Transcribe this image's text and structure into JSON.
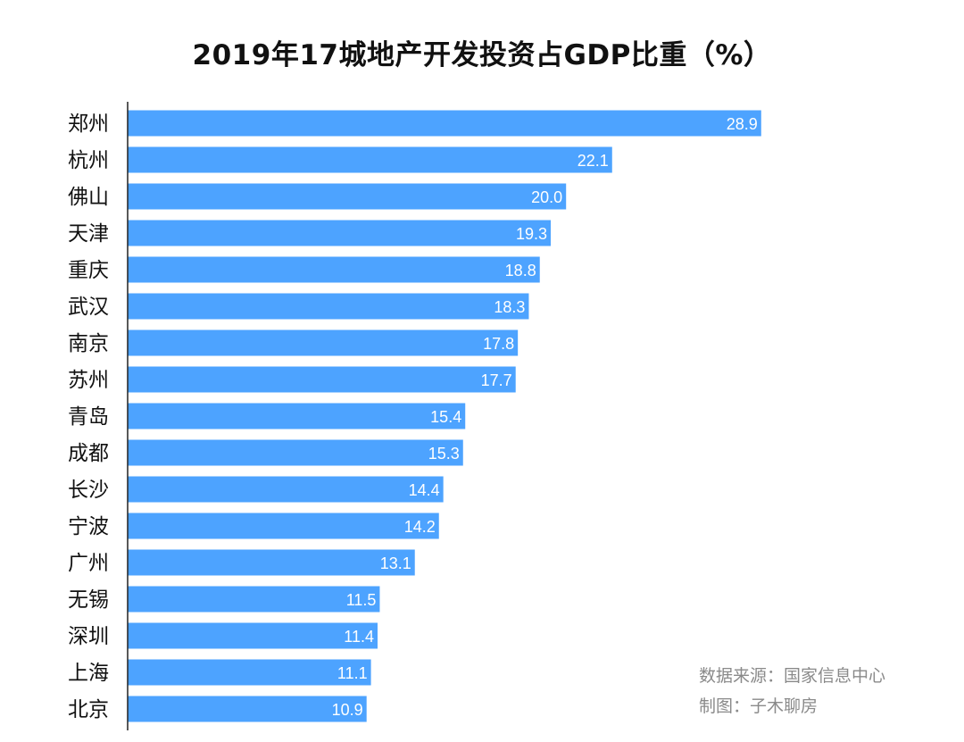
{
  "colors": {
    "bar": "#4da3ff",
    "axis": "#222222",
    "value_text": "#ffffff",
    "note_text": "#8a8a8a"
  },
  "chart_data": {
    "type": "bar",
    "orientation": "horizontal",
    "title": "2019年17城地产开发投资占GDP比重（%）",
    "xlabel": "",
    "ylabel": "",
    "xlim": [
      0,
      32
    ],
    "grid": false,
    "categories": [
      "郑州",
      "杭州",
      "佛山",
      "天津",
      "重庆",
      "武汉",
      "南京",
      "苏州",
      "青岛",
      "成都",
      "长沙",
      "宁波",
      "广州",
      "无锡",
      "深圳",
      "上海",
      "北京"
    ],
    "values": [
      28.9,
      22.1,
      20.0,
      19.3,
      18.8,
      18.3,
      17.8,
      17.7,
      15.4,
      15.3,
      14.4,
      14.2,
      13.1,
      11.5,
      11.4,
      11.1,
      10.9
    ],
    "value_labels": [
      "28.9",
      "22.1",
      "20.0",
      "19.3",
      "18.8",
      "18.3",
      "17.8",
      "17.7",
      "15.4",
      "15.3",
      "14.4",
      "14.2",
      "13.1",
      "11.5",
      "11.4",
      "11.1",
      "10.9"
    ]
  },
  "notes": {
    "source": "数据来源：国家信息中心",
    "maker": "制图：子木聊房"
  }
}
